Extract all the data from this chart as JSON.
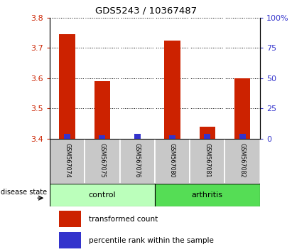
{
  "title": "GDS5243 / 10367487",
  "samples": [
    "GSM567074",
    "GSM567075",
    "GSM567076",
    "GSM567080",
    "GSM567081",
    "GSM567082"
  ],
  "red_values": [
    3.745,
    3.59,
    3.4,
    3.725,
    3.44,
    3.6
  ],
  "blue_values": [
    3.415,
    3.41,
    3.415,
    3.41,
    3.415,
    3.415
  ],
  "base_value": 3.4,
  "ylim_left": [
    3.4,
    3.8
  ],
  "ylim_right": [
    0,
    100
  ],
  "yticks_left": [
    3.4,
    3.5,
    3.6,
    3.7,
    3.8
  ],
  "yticks_right": [
    0,
    25,
    50,
    75,
    100
  ],
  "left_tick_labels": [
    "3.4",
    "3.5",
    "3.6",
    "3.7",
    "3.8"
  ],
  "right_tick_labels": [
    "0",
    "25",
    "50",
    "75",
    "100%"
  ],
  "red_color": "#cc2200",
  "blue_color": "#3333cc",
  "control_color": "#bbffbb",
  "arthritis_color": "#55dd55",
  "label_bg_color": "#c8c8c8",
  "bar_width": 0.45,
  "blue_bar_width": 0.18,
  "legend_red_label": "transformed count",
  "legend_blue_label": "percentile rank within the sample",
  "disease_state_label": "disease state"
}
